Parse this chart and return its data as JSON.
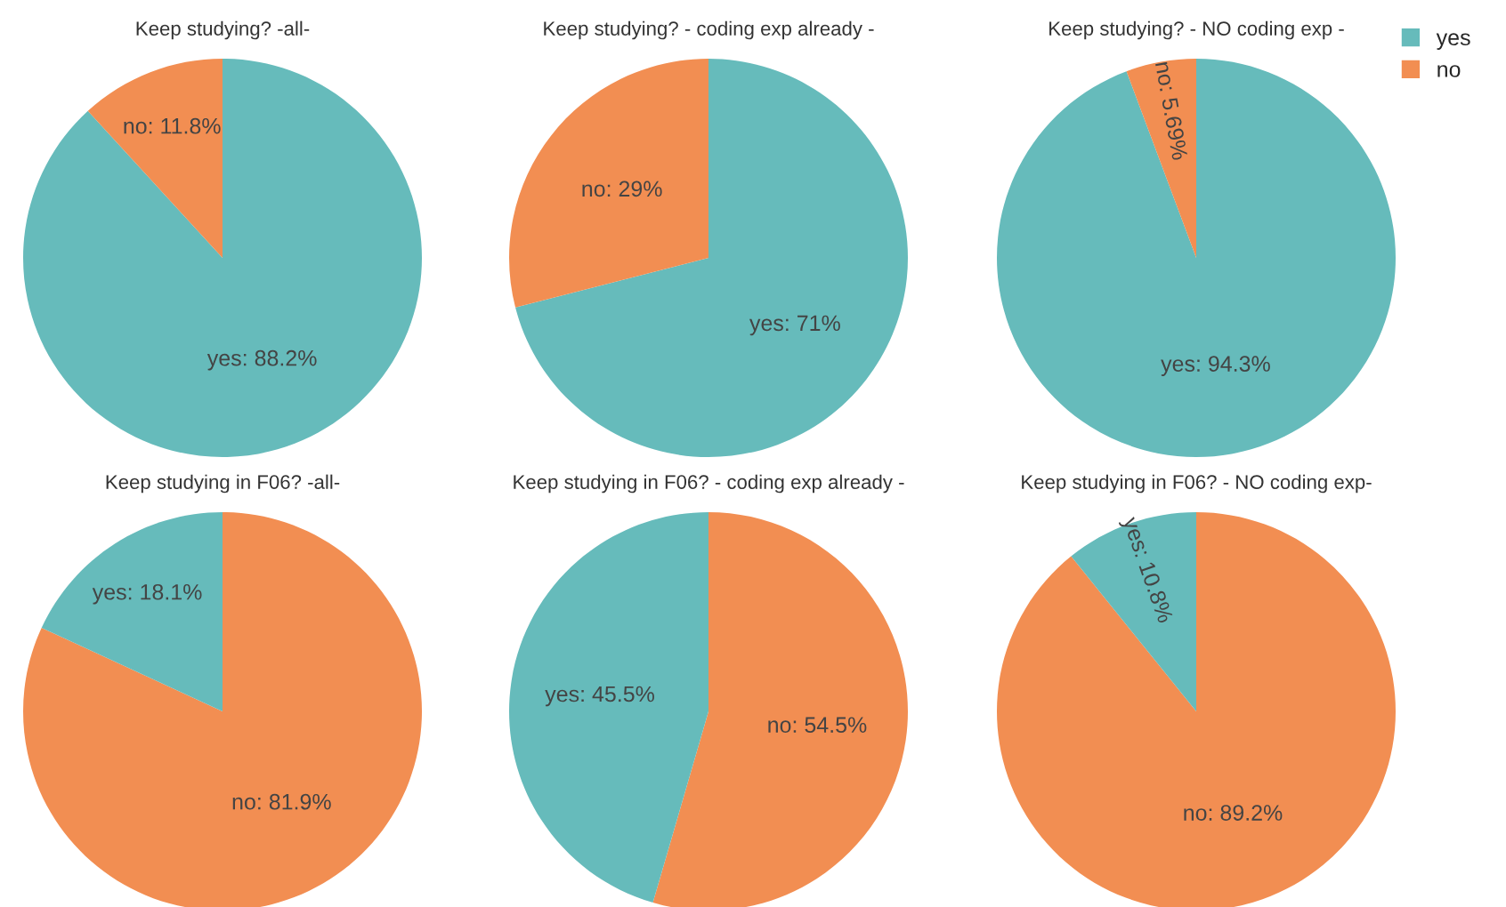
{
  "chart_data": [
    {
      "type": "pie",
      "title": "Keep studying? -all-",
      "categories": [
        "yes",
        "no"
      ],
      "values": [
        88.2,
        11.8
      ],
      "colors": [
        "#66bbbb",
        "#f28e52"
      ],
      "value_labels": [
        ": 88.2%",
        ": 11.8%"
      ],
      "legend": "top right"
    },
    {
      "type": "pie",
      "title": "Keep studying? - coding exp already -",
      "categories": [
        "yes",
        "no"
      ],
      "values": [
        71,
        29
      ],
      "colors": [
        "#66bbbb",
        "#f28e52"
      ],
      "value_labels": [
        ": 71%",
        ": 29%"
      ]
    },
    {
      "type": "pie",
      "title": "Keep studying? - NO coding exp -",
      "categories": [
        "yes",
        "no"
      ],
      "values": [
        94.3,
        5.69
      ],
      "colors": [
        "#66bbbb",
        "#f28e52"
      ],
      "value_labels": [
        ": 94.3%",
        ": 5.69%"
      ]
    },
    {
      "type": "pie",
      "title": "Keep studying in F06? -all-",
      "categories": [
        "no",
        "yes"
      ],
      "values": [
        81.9,
        18.1
      ],
      "colors": [
        "#f28e52",
        "#66bbbb"
      ],
      "value_labels": [
        ": 81.9%",
        ": 18.1%"
      ]
    },
    {
      "type": "pie",
      "title": "Keep studying in F06? - coding exp already -",
      "categories": [
        "no",
        "yes"
      ],
      "values": [
        54.5,
        45.5
      ],
      "colors": [
        "#f28e52",
        "#66bbbb"
      ],
      "value_labels": [
        ": 54.5%",
        ": 45.5%"
      ]
    },
    {
      "type": "pie",
      "title": "Keep studying in F06? - NO coding exp-",
      "categories": [
        "no",
        "yes"
      ],
      "values": [
        89.2,
        10.8
      ],
      "colors": [
        "#f28e52",
        "#66bbbb"
      ],
      "value_labels": [
        ": 89.2%",
        ": 10.8%"
      ]
    }
  ]
}
